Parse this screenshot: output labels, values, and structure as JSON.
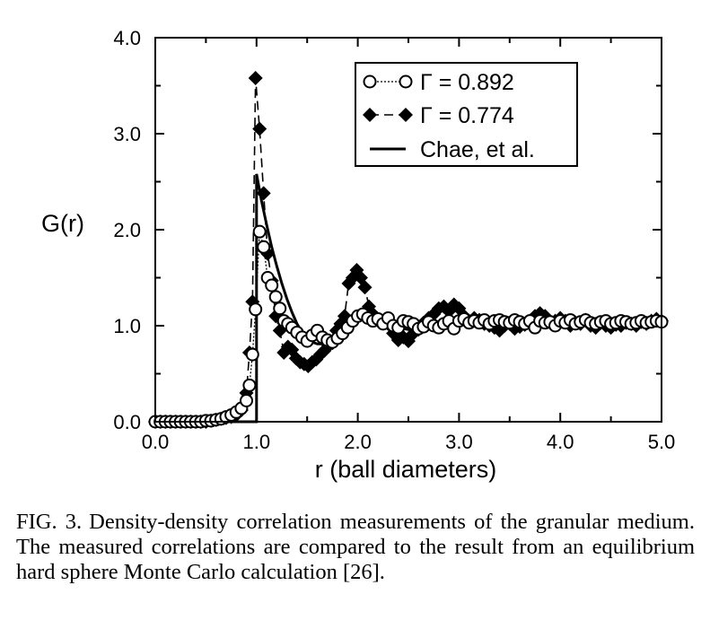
{
  "chart_data": {
    "type": "line",
    "title": "",
    "xlabel": "r (ball diameters)",
    "ylabel": "G(r)",
    "xlim": [
      0.0,
      5.0
    ],
    "ylim": [
      0.0,
      4.0
    ],
    "xticks": [
      "0.0",
      "1.0",
      "2.0",
      "3.0",
      "4.0",
      "5.0"
    ],
    "yticks": [
      "0.0",
      "1.0",
      "2.0",
      "3.0",
      "4.0"
    ],
    "xtick_values": [
      0,
      1,
      2,
      3,
      4,
      5
    ],
    "ytick_values": [
      0,
      1,
      2,
      3,
      4
    ],
    "grid": false,
    "legend_position": "top-right",
    "series": [
      {
        "name": "Γ = 0.892",
        "marker": "open-circle",
        "line": "dotted",
        "x": [
          0.0,
          0.05,
          0.1,
          0.15,
          0.2,
          0.25,
          0.3,
          0.35,
          0.4,
          0.45,
          0.5,
          0.55,
          0.6,
          0.65,
          0.7,
          0.75,
          0.8,
          0.85,
          0.9,
          0.93,
          0.96,
          0.99,
          1.03,
          1.07,
          1.11,
          1.15,
          1.19,
          1.23,
          1.27,
          1.31,
          1.35,
          1.4,
          1.45,
          1.5,
          1.55,
          1.6,
          1.65,
          1.7,
          1.75,
          1.8,
          1.85,
          1.9,
          1.95,
          2.0,
          2.05,
          2.1,
          2.15,
          2.2,
          2.25,
          2.3,
          2.35,
          2.4,
          2.45,
          2.5,
          2.55,
          2.6,
          2.65,
          2.7,
          2.75,
          2.8,
          2.85,
          2.9,
          2.95,
          3.0,
          3.05,
          3.1,
          3.15,
          3.2,
          3.25,
          3.3,
          3.35,
          3.4,
          3.45,
          3.5,
          3.55,
          3.6,
          3.65,
          3.7,
          3.75,
          3.8,
          3.85,
          3.9,
          3.95,
          4.0,
          4.05,
          4.1,
          4.15,
          4.2,
          4.25,
          4.3,
          4.35,
          4.4,
          4.45,
          4.5,
          4.55,
          4.6,
          4.65,
          4.7,
          4.75,
          4.8,
          4.85,
          4.9,
          4.95,
          5.0
        ],
        "y": [
          0.0,
          0.0,
          0.0,
          0.0,
          0.0,
          0.0,
          0.0,
          0.0,
          0.0,
          0.0,
          0.01,
          0.01,
          0.02,
          0.03,
          0.05,
          0.07,
          0.1,
          0.14,
          0.22,
          0.38,
          0.7,
          1.17,
          1.98,
          1.82,
          1.5,
          1.42,
          1.3,
          1.18,
          1.05,
          1.02,
          0.98,
          0.93,
          0.88,
          0.84,
          0.9,
          0.95,
          0.88,
          0.85,
          0.83,
          0.87,
          0.92,
          0.98,
          1.05,
          1.1,
          1.12,
          1.08,
          1.05,
          1.07,
          1.02,
          1.08,
          1.0,
          0.98,
          1.05,
          1.04,
          1.02,
          0.97,
          0.99,
          1.04,
          1.0,
          0.98,
          1.02,
          1.05,
          0.97,
          1.05,
          1.07,
          1.03,
          1.05,
          1.03,
          1.06,
          1.02,
          1.05,
          1.06,
          1.04,
          1.03,
          1.06,
          1.04,
          1.02,
          1.05,
          0.98,
          1.05,
          1.03,
          1.04,
          1.0,
          1.05,
          1.03,
          1.06,
          1.02,
          1.04,
          1.06,
          1.03,
          1.02,
          1.04,
          1.05,
          1.02,
          1.03,
          1.05,
          1.04,
          1.02,
          1.03,
          1.05,
          1.03,
          1.04,
          1.05,
          1.04
        ]
      },
      {
        "name": "Γ = 0.774",
        "marker": "filled-diamond",
        "line": "dashed",
        "x": [
          0.0,
          0.05,
          0.1,
          0.15,
          0.2,
          0.25,
          0.3,
          0.35,
          0.4,
          0.45,
          0.5,
          0.55,
          0.6,
          0.65,
          0.7,
          0.75,
          0.8,
          0.85,
          0.9,
          0.93,
          0.96,
          0.99,
          1.03,
          1.07,
          1.11,
          1.15,
          1.19,
          1.23,
          1.27,
          1.31,
          1.35,
          1.39,
          1.43,
          1.47,
          1.51,
          1.55,
          1.59,
          1.63,
          1.67,
          1.71,
          1.75,
          1.79,
          1.83,
          1.87,
          1.91,
          1.95,
          1.99,
          2.03,
          2.07,
          2.11,
          2.15,
          2.19,
          2.25,
          2.3,
          2.35,
          2.4,
          2.45,
          2.5,
          2.55,
          2.6,
          2.65,
          2.7,
          2.75,
          2.8,
          2.85,
          2.9,
          2.95,
          3.0,
          3.05,
          3.1,
          3.15,
          3.2,
          3.25,
          3.3,
          3.35,
          3.4,
          3.45,
          3.5,
          3.55,
          3.6,
          3.65,
          3.7,
          3.75,
          3.8,
          3.85,
          3.9,
          3.95,
          4.0,
          4.05,
          4.1,
          4.15,
          4.2,
          4.25,
          4.3,
          4.35,
          4.4,
          4.45,
          4.5,
          4.55,
          4.6,
          4.65,
          4.7,
          4.75,
          4.8,
          4.85,
          4.9,
          4.95,
          5.0
        ],
        "y": [
          0.0,
          0.0,
          0.0,
          0.0,
          0.0,
          0.0,
          0.0,
          0.0,
          0.0,
          0.0,
          0.0,
          0.01,
          0.02,
          0.03,
          0.04,
          0.05,
          0.07,
          0.12,
          0.3,
          0.72,
          1.25,
          3.58,
          3.05,
          2.38,
          1.75,
          1.47,
          1.1,
          0.95,
          0.72,
          0.78,
          0.75,
          0.66,
          0.62,
          0.6,
          0.58,
          0.62,
          0.65,
          0.7,
          0.74,
          0.79,
          0.82,
          0.95,
          1.02,
          1.1,
          1.44,
          1.5,
          1.58,
          1.5,
          1.4,
          1.2,
          1.12,
          1.08,
          1.05,
          1.02,
          0.92,
          0.85,
          0.88,
          0.84,
          0.92,
          0.96,
          1.03,
          1.08,
          1.12,
          1.18,
          1.2,
          1.15,
          1.22,
          1.18,
          1.1,
          1.05,
          1.08,
          1.06,
          1.02,
          1.0,
          0.98,
          0.95,
          1.0,
          1.02,
          0.97,
          0.99,
          1.01,
          1.05,
          1.1,
          1.13,
          1.1,
          1.03,
          1.05,
          1.08,
          1.05,
          1.0,
          1.03,
          1.02,
          1.06,
          1.0,
          0.98,
          1.03,
          1.0,
          0.98,
          1.01,
          1.0,
          1.03,
          1.02,
          1.0,
          1.04,
          1.02,
          1.05,
          1.07,
          1.05
        ]
      },
      {
        "name": "Chae, et al.",
        "marker": "none",
        "line": "solid",
        "x": [
          0.0,
          0.5,
          0.98,
          1.0,
          1.0,
          1.05,
          1.1,
          1.15,
          1.2,
          1.25,
          1.3,
          1.35,
          1.4,
          1.45,
          1.5,
          1.55,
          1.6,
          1.65,
          1.7,
          1.75,
          1.8,
          1.85,
          1.9,
          1.95,
          2.0,
          2.05,
          2.1,
          2.2,
          2.3,
          2.4,
          2.5,
          2.6,
          2.7,
          2.8,
          2.9,
          3.0,
          3.1,
          3.2,
          3.3,
          3.4,
          3.5,
          3.6,
          3.7,
          3.8,
          3.9,
          4.0,
          4.2,
          4.4,
          4.6,
          4.8,
          5.0
        ],
        "y": [
          0.0,
          0.0,
          0.0,
          0.0,
          2.58,
          2.3,
          2.05,
          1.82,
          1.62,
          1.44,
          1.28,
          1.14,
          1.02,
          0.93,
          0.87,
          0.83,
          0.81,
          0.81,
          0.83,
          0.87,
          0.93,
          1.0,
          1.06,
          1.1,
          1.12,
          1.12,
          1.1,
          1.06,
          1.02,
          0.98,
          0.96,
          0.96,
          0.98,
          1.01,
          1.03,
          1.04,
          1.03,
          1.01,
          1.0,
          0.99,
          0.99,
          0.99,
          1.0,
          1.01,
          1.01,
          1.01,
          1.0,
          1.0,
          1.0,
          1.0,
          1.0
        ]
      }
    ]
  },
  "caption": {
    "label": "FIG. 3.",
    "text": "Density-density correlation measurements of the granular medium. The measured correlations are compared to the result from an equilibrium hard sphere Monte Carlo calculation [26]."
  }
}
